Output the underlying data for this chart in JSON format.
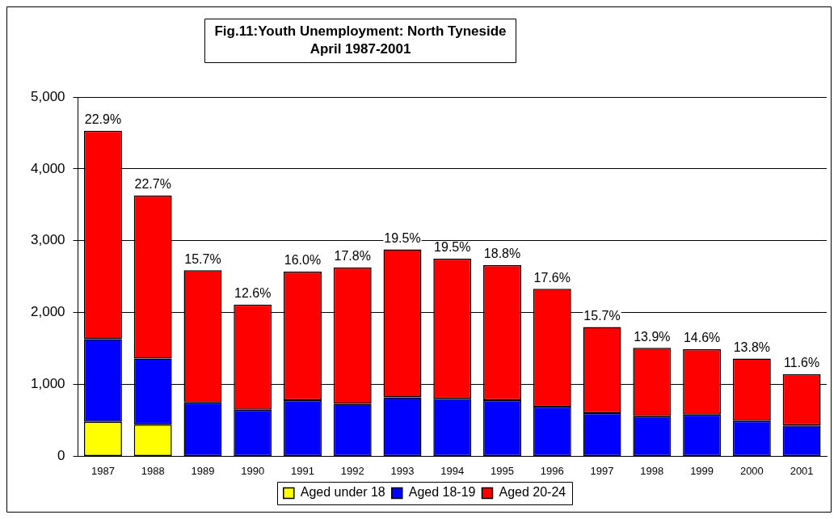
{
  "chart_data": {
    "type": "bar",
    "title": "Fig.11:Youth Unemployment: North Tyneside",
    "subtitle": "April 1987-2001",
    "categories": [
      "1987",
      "1988",
      "1989",
      "1990",
      "1991",
      "1992",
      "1993",
      "1994",
      "1995",
      "1996",
      "1997",
      "1998",
      "1999",
      "2000",
      "2001"
    ],
    "stacked": true,
    "series": [
      {
        "name": "Aged under 18",
        "color": "#ffff00",
        "values": [
          480,
          440,
          null,
          null,
          null,
          null,
          null,
          null,
          null,
          null,
          null,
          null,
          null,
          null,
          null
        ]
      },
      {
        "name": "Aged 18-19",
        "color": "#0000ff",
        "values": [
          1150,
          920,
          750,
          650,
          780,
          730,
          820,
          800,
          780,
          690,
          600,
          560,
          580,
          490,
          430
        ]
      },
      {
        "name": "Aged 20-24",
        "color": "#ff0000",
        "values": [
          2900,
          2270,
          1840,
          1460,
          1790,
          1900,
          2060,
          1950,
          1880,
          1640,
          1200,
          950,
          910,
          870,
          710
        ]
      }
    ],
    "annotations": [
      {
        "text": "22.9%",
        "x": "1987",
        "y": 4530
      },
      {
        "text": "22.7%",
        "x": "1988",
        "y": 3630
      },
      {
        "text": "15.7%",
        "x": "1989",
        "y": 2590
      },
      {
        "text": "12.6%",
        "x": "1990",
        "y": 2110
      },
      {
        "text": "16.0%",
        "x": "1991",
        "y": 2570
      },
      {
        "text": "17.8%",
        "x": "1992",
        "y": 2630
      },
      {
        "text": "19.5%",
        "x": "1993",
        "y": 2880
      },
      {
        "text": "19.5%",
        "x": "1994",
        "y": 2750
      },
      {
        "text": "18.8%",
        "x": "1995",
        "y": 2660
      },
      {
        "text": "17.6%",
        "x": "1996",
        "y": 2330
      },
      {
        "text": "15.7%",
        "x": "1997",
        "y": 1800
      },
      {
        "text": "13.9%",
        "x": "1998",
        "y": 1510
      },
      {
        "text": "14.6%",
        "x": "1999",
        "y": 1490
      },
      {
        "text": "13.8%",
        "x": "2000",
        "y": 1360
      },
      {
        "text": "11.6%",
        "x": "2001",
        "y": 1140
      }
    ],
    "ylim": [
      0,
      5000
    ],
    "yticks": [
      0,
      {
        "value": 1000,
        "label": "1,000"
      },
      {
        "value": 2000,
        "label": "2,000"
      },
      {
        "value": 3000,
        "label": "3,000"
      },
      {
        "value": 4000,
        "label": "4,000"
      },
      {
        "value": 5000,
        "label": "5,000"
      }
    ],
    "grid": "y",
    "legend": "bottom"
  }
}
